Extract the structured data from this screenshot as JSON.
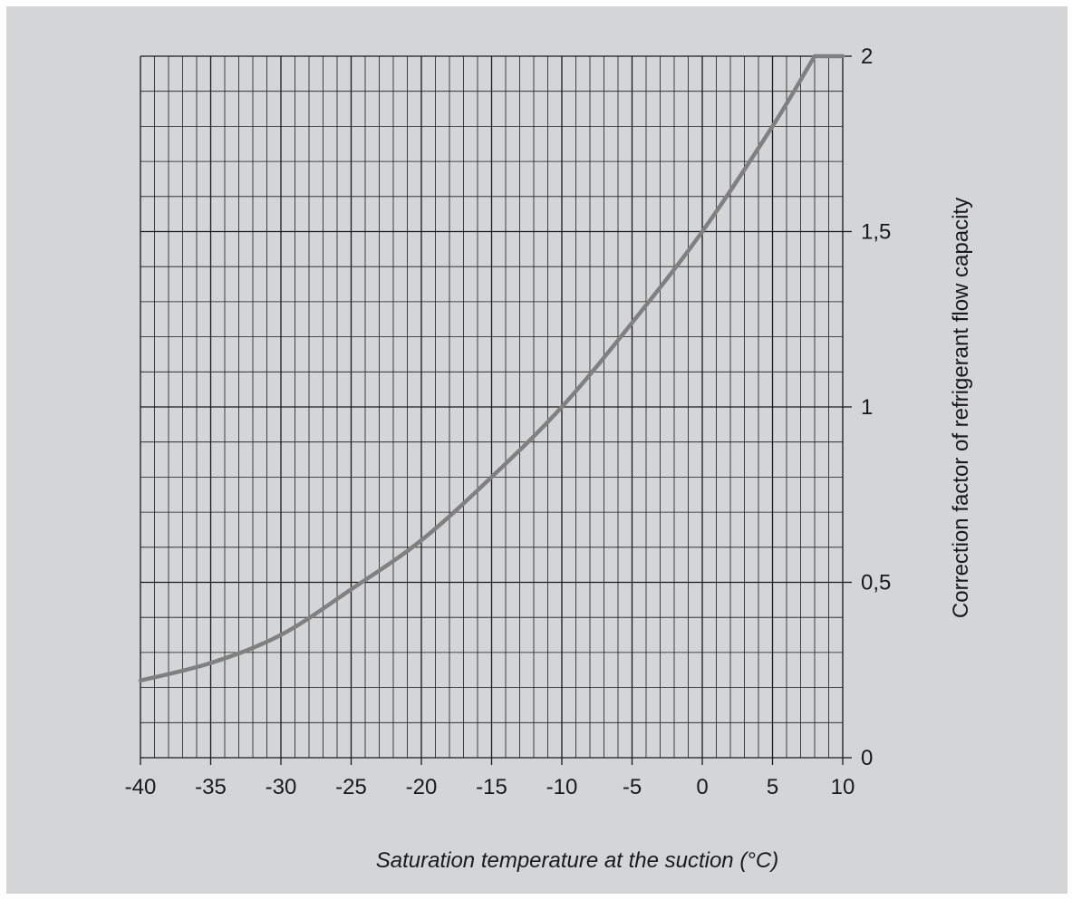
{
  "chart_data": {
    "type": "line",
    "title": "",
    "xlabel": "Saturation temperature at the suction (°C)",
    "ylabel": "Correction factor of refrigerant flow capacity",
    "xlim": [
      -40,
      10
    ],
    "ylim": [
      0,
      2
    ],
    "x_ticks": [
      -40,
      -35,
      -30,
      -25,
      -20,
      -15,
      -10,
      -5,
      0,
      5,
      10
    ],
    "x_tick_labels": [
      "-40",
      "-35",
      "-30",
      "-25",
      "-20",
      "-15",
      "-10",
      "-5",
      "0",
      "5",
      "10"
    ],
    "y_ticks": [
      0,
      0.5,
      1,
      1.5,
      2
    ],
    "y_tick_labels": [
      "0",
      "0,5",
      "1",
      "1,5",
      "2"
    ],
    "y_axis_side": "right",
    "grid": true,
    "grid_minor_x_step": 1,
    "grid_minor_y_step": 0.1,
    "series": [
      {
        "x": [
          -40,
          -35,
          -30,
          -25,
          -20,
          -15,
          -10,
          -5,
          0,
          5,
          8,
          10
        ],
        "y": [
          0.22,
          0.27,
          0.35,
          0.48,
          0.62,
          0.8,
          1.0,
          1.24,
          1.5,
          1.8,
          2.0,
          2.0
        ]
      }
    ],
    "colors": {
      "background": "#d4d5d7",
      "grid": "#1a1a1a",
      "line": "#808080",
      "text": "#1a1a1a"
    }
  }
}
